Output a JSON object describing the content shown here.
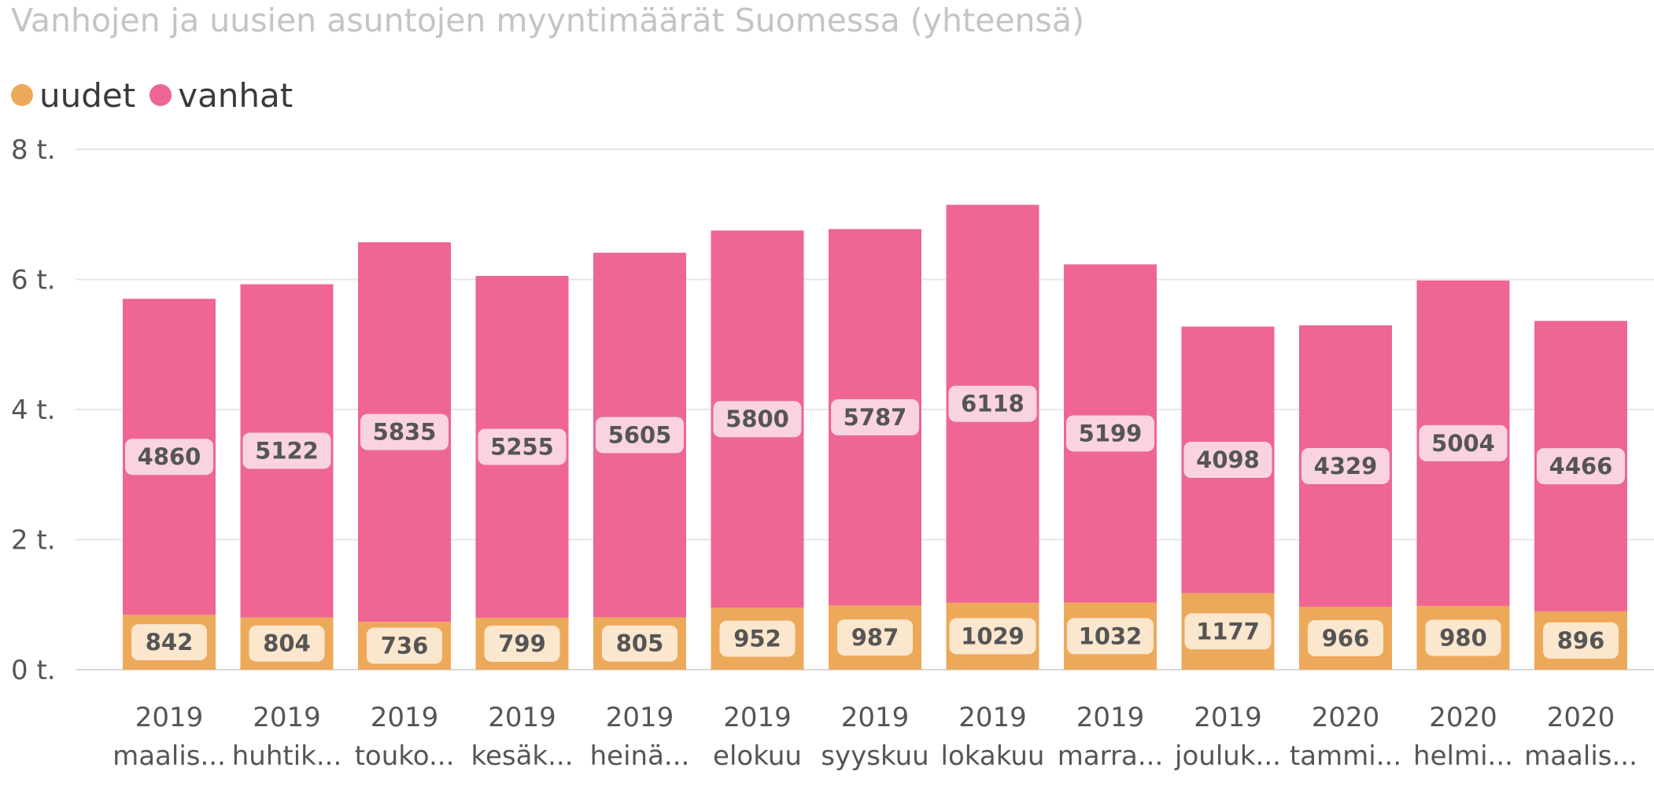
{
  "chart_data": {
    "type": "bar",
    "stacked": true,
    "title": "Vanhojen ja uusien asuntojen myyntimäärät Suomessa (yhteensä)",
    "xlabel": "",
    "ylabel": "",
    "ylim": [
      0,
      8000
    ],
    "y_ticks": [
      {
        "value": 0,
        "label": "0 t."
      },
      {
        "value": 2000,
        "label": "2 t."
      },
      {
        "value": 4000,
        "label": "4 t."
      },
      {
        "value": 6000,
        "label": "6 t."
      },
      {
        "value": 8000,
        "label": "8 t."
      }
    ],
    "grid": true,
    "legend_position": "top-left",
    "categories": [
      {
        "year": "2019",
        "month": "maalis..."
      },
      {
        "year": "2019",
        "month": "huhtik..."
      },
      {
        "year": "2019",
        "month": "touko..."
      },
      {
        "year": "2019",
        "month": "kesäk..."
      },
      {
        "year": "2019",
        "month": "heinä..."
      },
      {
        "year": "2019",
        "month": "elokuu"
      },
      {
        "year": "2019",
        "month": "syyskuu"
      },
      {
        "year": "2019",
        "month": "lokakuu"
      },
      {
        "year": "2019",
        "month": "marra..."
      },
      {
        "year": "2019",
        "month": "jouluk..."
      },
      {
        "year": "2020",
        "month": "tammi..."
      },
      {
        "year": "2020",
        "month": "helmi..."
      },
      {
        "year": "2020",
        "month": "maalis..."
      }
    ],
    "series": [
      {
        "name": "uudet",
        "color": "#EDA95A",
        "label_bg": "#FBE6CE",
        "values": [
          842,
          804,
          736,
          799,
          805,
          952,
          987,
          1029,
          1032,
          1177,
          966,
          980,
          896
        ]
      },
      {
        "name": "vanhat",
        "color": "#EE6691",
        "label_bg": "#FAD3E0",
        "values": [
          4860,
          5122,
          5835,
          5255,
          5605,
          5800,
          5787,
          6118,
          5199,
          4098,
          4329,
          5004,
          4466
        ]
      }
    ]
  }
}
